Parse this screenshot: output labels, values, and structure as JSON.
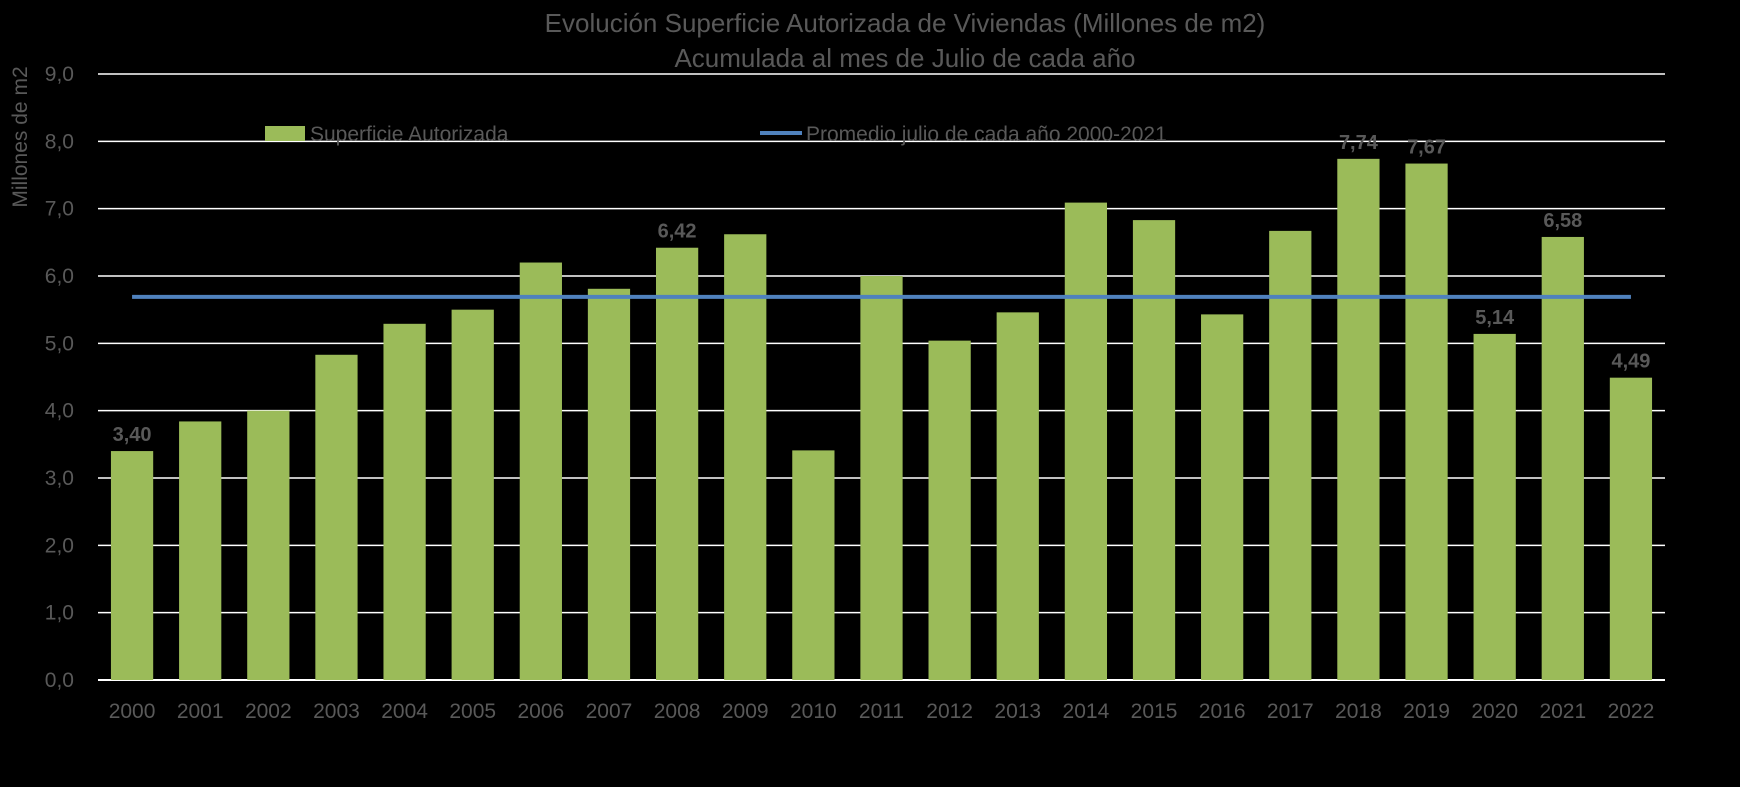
{
  "chart_data": {
    "type": "bar",
    "title": "Evolución Superficie Autorizada de Viviendas (Millones de m2)",
    "subtitle": "Acumulada al mes de Julio de cada año",
    "xlabel": "",
    "ylabel": "Millones de m2",
    "ylim": [
      0,
      9
    ],
    "ytick_step": 1,
    "ytick_labels": [
      "0,0",
      "1,0",
      "2,0",
      "3,0",
      "4,0",
      "5,0",
      "6,0",
      "7,0",
      "8,0",
      "9,0"
    ],
    "grid": true,
    "legend_position": "top",
    "categories": [
      "2000",
      "2001",
      "2002",
      "2003",
      "2004",
      "2005",
      "2006",
      "2007",
      "2008",
      "2009",
      "2010",
      "2011",
      "2012",
      "2013",
      "2014",
      "2015",
      "2016",
      "2017",
      "2018",
      "2019",
      "2020",
      "2021",
      "2022"
    ],
    "series": [
      {
        "name": "Superficie Autorizada",
        "kind": "bar",
        "color": "#9BBB59",
        "values": [
          3.4,
          3.84,
          4.0,
          4.83,
          5.29,
          5.5,
          6.2,
          5.81,
          6.42,
          6.62,
          3.41,
          6.0,
          5.04,
          5.46,
          7.09,
          6.83,
          5.43,
          6.67,
          7.74,
          7.67,
          5.14,
          6.58,
          4.49
        ]
      },
      {
        "name": "Promedio julio de cada año 2000-2021",
        "kind": "line",
        "color": "#4F81BD",
        "value": 5.69
      }
    ],
    "data_labels": [
      {
        "index": 0,
        "text": "3,40"
      },
      {
        "index": 8,
        "text": "6,42"
      },
      {
        "index": 18,
        "text": "7,74"
      },
      {
        "index": 19,
        "text": "7,67"
      },
      {
        "index": 20,
        "text": "5,14"
      },
      {
        "index": 21,
        "text": "6,58"
      },
      {
        "index": 22,
        "text": "4,49"
      }
    ]
  }
}
